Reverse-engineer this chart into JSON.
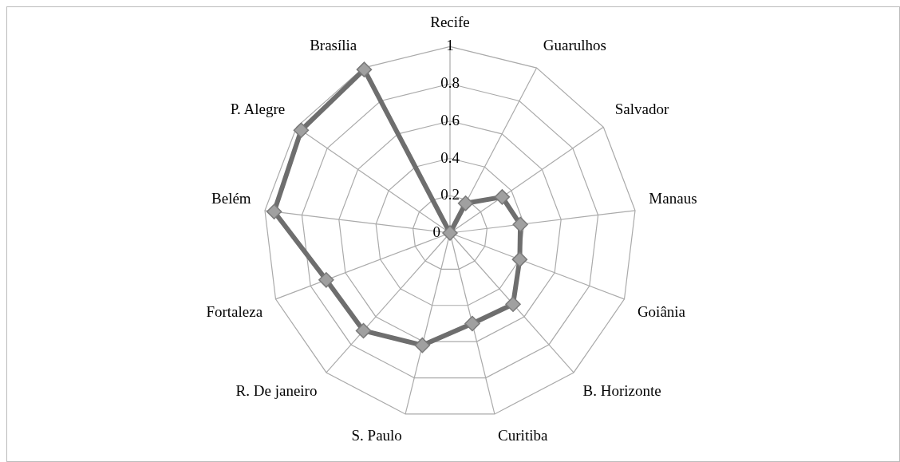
{
  "chart_data": {
    "type": "radar",
    "categories": [
      "Recife",
      "Guarulhos",
      "Salvador",
      "Manaus",
      "Goiânia",
      "B. Horizonte",
      "Curitiba",
      "S. Paulo",
      "R. De janeiro",
      "Fortaleza",
      "Belém",
      "P. Alegre",
      "Brasília"
    ],
    "series": [
      {
        "color": "#6e6e6e",
        "values": [
          0,
          0.18,
          0.34,
          0.38,
          0.4,
          0.51,
          0.5,
          0.62,
          0.7,
          0.71,
          0.95,
          0.97,
          0.99
        ]
      }
    ],
    "ylim": [
      0,
      1
    ],
    "yticks": [
      0,
      0.2,
      0.4,
      0.6,
      0.8,
      1
    ],
    "grid": true,
    "legend": false,
    "marker": "diamond",
    "line_style": "solid"
  }
}
